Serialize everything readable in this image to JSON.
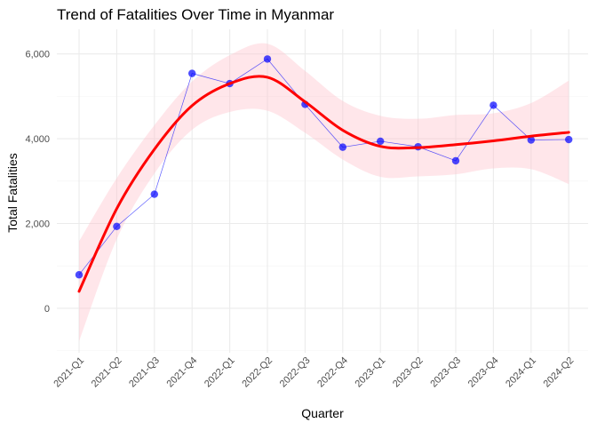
{
  "chart_data": {
    "type": "line",
    "title": "Trend of Fatalities Over Time in Myanmar",
    "xlabel": "Quarter",
    "ylabel": "Total Fatalities",
    "categories": [
      "2021-Q1",
      "2021-Q2",
      "2021-Q3",
      "2021-Q4",
      "2022-Q1",
      "2022-Q2",
      "2022-Q3",
      "2022-Q4",
      "2023-Q1",
      "2023-Q2",
      "2023-Q3",
      "2023-Q4",
      "2024-Q1",
      "2024-Q2"
    ],
    "ylim": [
      -1050,
      6580
    ],
    "yticks": [
      0,
      2000,
      4000,
      6000
    ],
    "ytick_labels": [
      "0",
      "2,000",
      "4,000",
      "6,000"
    ],
    "grid": true,
    "series": [
      {
        "values": [
          790,
          1930,
          2690,
          5540,
          5300,
          5880,
          4810,
          3800,
          3940,
          3810,
          3480,
          4790,
          3970,
          3980
        ],
        "style": "points+line",
        "color": "#0000ff"
      },
      {
        "values": [
          400,
          2350,
          3750,
          4780,
          5300,
          5450,
          4870,
          4200,
          3820,
          3790,
          3860,
          3950,
          4060,
          4150
        ],
        "ci_upper": [
          1580,
          3070,
          4320,
          5350,
          5970,
          6240,
          5600,
          4890,
          4540,
          4470,
          4560,
          4600,
          4840,
          5370
        ],
        "ci_lower": [
          -780,
          1630,
          3180,
          4210,
          4630,
          4660,
          4140,
          3510,
          3100,
          3110,
          3160,
          3300,
          3280,
          2930
        ],
        "style": "smooth+ribbon",
        "color": "#ff0000",
        "ribbon_color": "#ffc0cb"
      }
    ]
  }
}
